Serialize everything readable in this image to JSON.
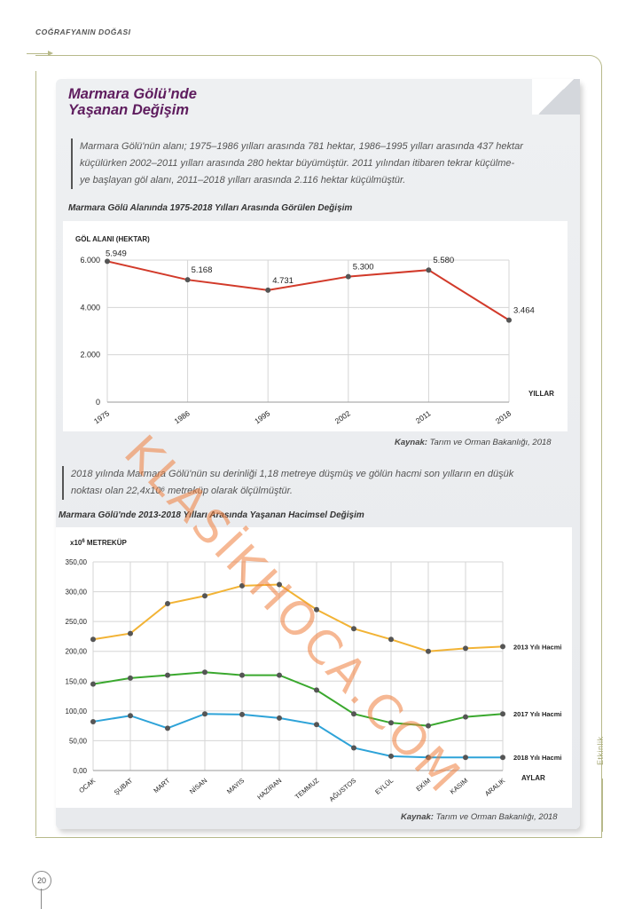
{
  "header": {
    "running_title": "COĞRAFYANIN DOĞASI"
  },
  "section": {
    "title_line1": "Marmara Gölü’nde",
    "title_line2": "Yaşanan Değişim",
    "paragraph1": [
      "Marmara Gölü'nün alanı; 1975–1986 yılları arasında 781 hektar, 1986–1995 yılları arasında 437 hektar",
      "küçülürken 2002–2011 yılları arasında 280 hektar büyümüştür. 2011 yılından itibaren tekrar küçülme-",
      "ye başlayan göl alanı, 2011–2018 yılları arasında 2.116 hektar küçülmüştür."
    ],
    "chart1_caption": "Marmara Gölü Alanında 1975-2018 Yılları Arasında Görülen Değişim",
    "source1_label": "Kaynak:",
    "source1_text": "Tarım ve Orman Bakanlığı, 2018",
    "paragraph2": [
      "2018 yılında Marmara Gölü'nün su derinliği  1,18 metreye düşmüş ve gölün hacmi son yılların en düşük",
      "noktası olan 22,4x10⁶  metreküp olarak ölçülmüştür."
    ],
    "chart2_caption": "Marmara Gölü'nde 2013-2018 Yılları Arasında Yaşanan Hacimsel Değişim",
    "source2_label": "Kaynak:",
    "source2_text": "Tarım ve Orman Bakanlığı, 2018"
  },
  "side_label": "Etkinlik",
  "page_number": "20",
  "watermark": "KLASİKHOCA.COM",
  "chart_data": [
    {
      "type": "line",
      "title": "",
      "ylabel": "GÖL ALANI (HEKTAR)",
      "xlabel": "YILLAR",
      "categories": [
        "1975",
        "1986",
        "1995",
        "2002",
        "2011",
        "2018"
      ],
      "series": [
        {
          "values": [
            5949,
            5168,
            4731,
            5300,
            5580,
            3464
          ],
          "labels": [
            "5.949",
            "5.168",
            "4.731",
            "5.300",
            "5.580",
            "3.464"
          ],
          "color": "#d23a2a"
        }
      ],
      "yticks": [
        "0",
        "2.000",
        "4.000",
        "6.000"
      ],
      "ytick_values": [
        0,
        2000,
        4000,
        6000
      ],
      "ylim": [
        0,
        6000
      ],
      "grid": true
    },
    {
      "type": "line",
      "title": "",
      "ylabel_prefix": "x10",
      "ylabel_sup": "6",
      "ylabel": "METREKÜP",
      "xlabel": "AYLAR",
      "categories": [
        "OCAK",
        "ŞUBAT",
        "MART",
        "NİSAN",
        "MAYIS",
        "HAZİRAN",
        "TEMMUZ",
        "AĞUSTOS",
        "EYLÜL",
        "EKİM",
        "KASIM",
        "ARALIK"
      ],
      "series": [
        {
          "name": "2013 Yılı Hacmi",
          "color": "#f2b335",
          "values": [
            220,
            230,
            280,
            293,
            310,
            312,
            270,
            238,
            220,
            200,
            205,
            208
          ]
        },
        {
          "name": "2017 Yılı Hacmi",
          "color": "#3aa82e",
          "values": [
            145,
            155,
            160,
            165,
            160,
            160,
            135,
            95,
            80,
            75,
            90,
            95
          ]
        },
        {
          "name": "2018 Yılı Hacmi",
          "color": "#2ea3d8",
          "values": [
            82,
            92,
            71,
            95,
            94,
            88,
            77,
            38,
            24,
            22,
            22,
            22
          ]
        }
      ],
      "yticks": [
        "0,00",
        "50,00",
        "100,00",
        "150,00",
        "200,00",
        "250,00",
        "300,00",
        "350,00"
      ],
      "ytick_values": [
        0,
        50,
        100,
        150,
        200,
        250,
        300,
        350
      ],
      "ylim": [
        0,
        350
      ],
      "grid": true
    }
  ]
}
